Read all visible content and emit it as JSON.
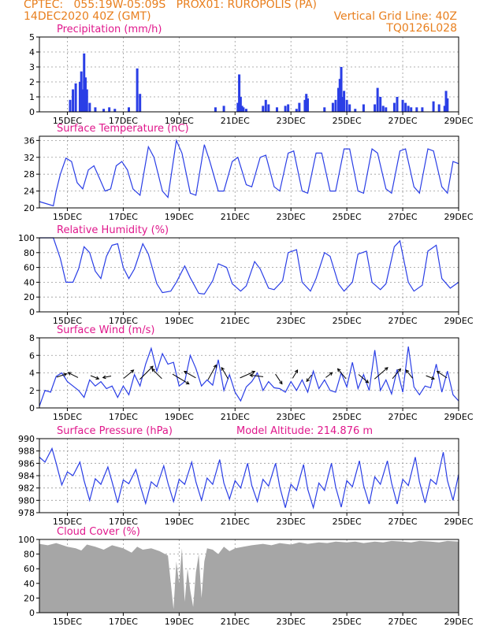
{
  "header": {
    "line1": "CPTEC:   055:19W-05:09S   PROX01: RUROPOLIS (PA)",
    "line2": "14DEC2020 40Z (GMT)",
    "right1": "Vertical Grid Line: 40Z",
    "right2": "TQ0126L028"
  },
  "colors": {
    "series": "#2a3ee6",
    "cloud": "#a6a6a6",
    "title": "#e0188c",
    "header": "#e87f1e"
  },
  "chart_data": [
    {
      "type": "bar",
      "title": "Precipitation (mm/h)",
      "ylim": [
        0,
        5
      ],
      "yticks": [
        0,
        1,
        2,
        3,
        4,
        5
      ],
      "xlim": [
        14.0,
        29.0
      ],
      "xticks": [
        15,
        17,
        19,
        21,
        23,
        25,
        27,
        29
      ],
      "xticklabels": [
        "15DEC",
        "17DEC",
        "19DEC",
        "21DEC",
        "23DEC",
        "25DEC",
        "27DEC",
        "29DEC"
      ],
      "x": [
        15.1,
        15.2,
        15.3,
        15.45,
        15.5,
        15.55,
        15.6,
        15.65,
        15.7,
        15.8,
        16.0,
        16.3,
        16.5,
        16.7,
        17.2,
        17.5,
        17.6,
        20.3,
        20.6,
        21.1,
        21.15,
        21.2,
        21.25,
        21.3,
        21.4,
        22.0,
        22.1,
        22.2,
        22.5,
        22.8,
        22.9,
        23.2,
        23.3,
        23.5,
        23.55,
        23.6,
        24.2,
        24.5,
        24.6,
        24.7,
        24.75,
        24.8,
        24.85,
        24.9,
        25.0,
        25.1,
        25.3,
        25.6,
        26.0,
        26.1,
        26.2,
        26.3,
        26.4,
        26.7,
        26.8,
        27.0,
        27.1,
        27.2,
        27.3,
        27.5,
        27.7,
        28.1,
        28.3,
        28.5,
        28.55,
        28.6
      ],
      "values": [
        0.8,
        1.5,
        1.9,
        2.0,
        2.7,
        1.5,
        3.9,
        2.3,
        1.5,
        0.6,
        0.3,
        0.2,
        0.3,
        0.2,
        0.3,
        2.9,
        1.2,
        0.3,
        0.4,
        0.6,
        2.5,
        1.0,
        0.4,
        0.3,
        0.2,
        0.4,
        0.8,
        0.5,
        0.3,
        0.4,
        0.5,
        0.2,
        0.6,
        0.8,
        1.2,
        0.9,
        0.3,
        0.6,
        0.8,
        1.6,
        2.2,
        3.0,
        1.0,
        1.4,
        0.8,
        0.5,
        0.2,
        0.5,
        0.5,
        1.6,
        1.0,
        0.4,
        0.3,
        0.6,
        1.0,
        0.8,
        0.6,
        0.4,
        0.3,
        0.3,
        0.3,
        0.7,
        0.5,
        0.4,
        1.4,
        0.9
      ]
    },
    {
      "type": "line",
      "title": "Surface Temperature (nC)",
      "ylim": [
        20,
        37
      ],
      "yticks": [
        20,
        24,
        28,
        32,
        36
      ],
      "xlim": [
        14.0,
        29.0
      ],
      "xticks": [
        15,
        17,
        19,
        21,
        23,
        25,
        27,
        29
      ],
      "xticklabels": [
        "15DEC",
        "17DEC",
        "19DEC",
        "21DEC",
        "23DEC",
        "25DEC",
        "27DEC",
        "29DEC"
      ],
      "x": [
        14.0,
        14.5,
        14.6,
        14.75,
        14.95,
        15.15,
        15.35,
        15.55,
        15.75,
        15.95,
        16.15,
        16.35,
        16.55,
        16.75,
        16.95,
        17.15,
        17.35,
        17.6,
        17.9,
        18.1,
        18.4,
        18.6,
        18.9,
        19.1,
        19.4,
        19.6,
        19.9,
        20.1,
        20.4,
        20.6,
        20.9,
        21.1,
        21.4,
        21.6,
        21.9,
        22.1,
        22.4,
        22.6,
        22.9,
        23.1,
        23.4,
        23.6,
        23.9,
        24.1,
        24.4,
        24.6,
        24.9,
        25.1,
        25.4,
        25.6,
        25.9,
        26.1,
        26.4,
        26.6,
        26.9,
        27.1,
        27.4,
        27.6,
        27.9,
        28.1,
        28.4,
        28.6,
        28.8,
        29.0
      ],
      "values": [
        21.5,
        20.5,
        24.0,
        28.0,
        31.8,
        31.0,
        26.0,
        24.5,
        29.0,
        30.0,
        27.0,
        24.0,
        24.5,
        30.0,
        31.0,
        29.0,
        24.5,
        23.0,
        34.5,
        32.0,
        24.0,
        22.5,
        36.0,
        33.0,
        23.5,
        23.0,
        35.0,
        31.0,
        24.0,
        24.0,
        31.0,
        32.0,
        25.5,
        25.0,
        32.0,
        32.5,
        25.0,
        24.0,
        33.0,
        33.5,
        24.0,
        23.5,
        33.0,
        33.0,
        24.0,
        24.0,
        34.0,
        34.0,
        24.0,
        23.5,
        34.0,
        33.0,
        24.5,
        23.5,
        33.5,
        34.0,
        25.0,
        23.5,
        34.0,
        33.5,
        25.0,
        23.5,
        31.0,
        30.5
      ]
    },
    {
      "type": "line",
      "title": "Relative Humidity (%)",
      "ylim": [
        0,
        100
      ],
      "yticks": [
        0,
        20,
        40,
        60,
        80,
        100
      ],
      "xlim": [
        14.0,
        29.0
      ],
      "xticks": [
        15,
        17,
        19,
        21,
        23,
        25,
        27,
        29
      ],
      "xticklabels": [
        "15DEC",
        "17DEC",
        "19DEC",
        "21DEC",
        "23DEC",
        "25DEC",
        "27DEC",
        "29DEC"
      ],
      "x": [
        14.0,
        14.5,
        14.75,
        14.95,
        15.2,
        15.4,
        15.6,
        15.8,
        16.0,
        16.2,
        16.4,
        16.6,
        16.8,
        17.0,
        17.2,
        17.4,
        17.7,
        17.9,
        18.2,
        18.4,
        18.7,
        18.9,
        19.2,
        19.4,
        19.7,
        19.9,
        20.2,
        20.4,
        20.7,
        20.9,
        21.2,
        21.4,
        21.7,
        21.9,
        22.2,
        22.4,
        22.7,
        22.9,
        23.2,
        23.4,
        23.7,
        23.9,
        24.2,
        24.4,
        24.7,
        24.9,
        25.2,
        25.4,
        25.7,
        25.9,
        26.2,
        26.4,
        26.7,
        26.9,
        27.2,
        27.4,
        27.7,
        27.9,
        28.2,
        28.4,
        28.7,
        29.0
      ],
      "values": [
        100,
        100,
        72,
        40,
        40,
        58,
        88,
        80,
        55,
        45,
        75,
        90,
        92,
        60,
        45,
        58,
        92,
        78,
        38,
        26,
        28,
        40,
        62,
        46,
        25,
        24,
        42,
        65,
        60,
        38,
        28,
        35,
        68,
        58,
        32,
        30,
        42,
        80,
        84,
        40,
        28,
        45,
        80,
        75,
        38,
        28,
        40,
        78,
        82,
        40,
        30,
        38,
        88,
        96,
        40,
        28,
        36,
        82,
        90,
        45,
        32,
        40
      ]
    },
    {
      "type": "line",
      "title": "Surface Wind (m/s)",
      "ylim": [
        0,
        8
      ],
      "yticks": [
        0,
        2,
        4,
        6,
        8
      ],
      "xlim": [
        14.0,
        29.0
      ],
      "xticks": [
        15,
        17,
        19,
        21,
        23,
        25,
        27,
        29
      ],
      "xticklabels": [
        "15DEC",
        "17DEC",
        "19DEC",
        "21DEC",
        "23DEC",
        "25DEC",
        "27DEC",
        "29DEC"
      ],
      "x": [
        14.0,
        14.2,
        14.4,
        14.6,
        14.8,
        15.0,
        15.2,
        15.4,
        15.6,
        15.8,
        16.0,
        16.2,
        16.4,
        16.6,
        16.8,
        17.0,
        17.2,
        17.4,
        17.6,
        17.8,
        18.0,
        18.2,
        18.4,
        18.6,
        18.8,
        19.0,
        19.2,
        19.4,
        19.6,
        19.8,
        20.0,
        20.2,
        20.4,
        20.6,
        20.8,
        21.0,
        21.2,
        21.4,
        21.6,
        21.8,
        22.0,
        22.2,
        22.4,
        22.6,
        22.8,
        23.0,
        23.2,
        23.4,
        23.6,
        23.8,
        24.0,
        24.2,
        24.4,
        24.6,
        24.8,
        25.0,
        25.2,
        25.4,
        25.6,
        25.8,
        26.0,
        26.2,
        26.4,
        26.6,
        26.8,
        27.0,
        27.2,
        27.4,
        27.6,
        27.8,
        28.0,
        28.2,
        28.4,
        28.6,
        28.8,
        29.0
      ],
      "values": [
        0.2,
        2.0,
        1.8,
        3.6,
        4.0,
        3.0,
        2.5,
        2.0,
        1.2,
        3.2,
        2.5,
        3.0,
        2.2,
        2.5,
        1.2,
        2.5,
        1.5,
        3.8,
        2.5,
        5.0,
        6.8,
        4.2,
        6.2,
        5.0,
        5.2,
        2.5,
        3.0,
        6.0,
        4.5,
        2.5,
        3.2,
        2.6,
        5.5,
        2.0,
        3.8,
        1.8,
        0.8,
        2.4,
        3.0,
        4.0,
        2.0,
        3.0,
        2.3,
        2.2,
        1.8,
        3.0,
        2.0,
        3.2,
        1.8,
        4.2,
        2.2,
        3.2,
        2.0,
        1.8,
        4.0,
        2.4,
        5.2,
        2.2,
        3.8,
        2.0,
        6.6,
        2.0,
        3.2,
        1.6,
        4.4,
        1.8,
        7.0,
        2.4,
        1.5,
        2.5,
        2.3,
        5.0,
        1.8,
        4.2,
        1.5,
        0.8
      ]
    },
    {
      "type": "line",
      "title": "Surface Pressure (hPa)",
      "annotation": "Model Altitude: 214.876 m",
      "ylim": [
        978,
        990
      ],
      "yticks": [
        978,
        980,
        982,
        984,
        986,
        988,
        990
      ],
      "xlim": [
        14.0,
        29.0
      ],
      "xticks": [
        15,
        17,
        19,
        21,
        23,
        25,
        27,
        29
      ],
      "xticklabels": [
        "15DEC",
        "17DEC",
        "19DEC",
        "21DEC",
        "23DEC",
        "25DEC",
        "27DEC",
        "29DEC"
      ],
      "x": [
        14.0,
        14.2,
        14.45,
        14.6,
        14.8,
        15.0,
        15.2,
        15.45,
        15.6,
        15.8,
        16.0,
        16.2,
        16.45,
        16.6,
        16.8,
        17.0,
        17.2,
        17.45,
        17.6,
        17.8,
        18.0,
        18.2,
        18.45,
        18.6,
        18.8,
        19.0,
        19.2,
        19.45,
        19.6,
        19.8,
        20.0,
        20.2,
        20.45,
        20.6,
        20.8,
        21.0,
        21.2,
        21.45,
        21.6,
        21.8,
        22.0,
        22.2,
        22.45,
        22.6,
        22.8,
        23.0,
        23.2,
        23.45,
        23.6,
        23.8,
        24.0,
        24.2,
        24.45,
        24.6,
        24.8,
        25.0,
        25.2,
        25.45,
        25.6,
        25.8,
        26.0,
        26.2,
        26.45,
        26.6,
        26.8,
        27.0,
        27.2,
        27.45,
        27.6,
        27.8,
        28.0,
        28.2,
        28.45,
        28.6,
        28.8,
        29.0
      ],
      "values": [
        987.0,
        986.2,
        988.4,
        986.0,
        982.5,
        984.6,
        984.0,
        986.2,
        983.2,
        980.0,
        983.5,
        982.6,
        985.4,
        983.0,
        979.6,
        983.3,
        982.7,
        985.0,
        982.5,
        979.5,
        983.0,
        982.2,
        985.6,
        982.8,
        979.8,
        983.4,
        982.6,
        986.2,
        983.0,
        980.0,
        983.6,
        982.6,
        986.6,
        982.8,
        980.2,
        983.2,
        982.0,
        986.0,
        982.4,
        979.8,
        983.4,
        982.3,
        986.0,
        982.2,
        978.8,
        982.6,
        981.6,
        985.8,
        981.8,
        978.8,
        982.8,
        981.6,
        986.0,
        982.2,
        978.9,
        983.2,
        982.2,
        986.4,
        982.4,
        979.4,
        983.8,
        982.6,
        986.4,
        982.8,
        979.4,
        983.4,
        982.4,
        987.0,
        983.0,
        979.6,
        983.4,
        982.6,
        987.8,
        983.2,
        980.0,
        984.2
      ]
    },
    {
      "type": "area",
      "title": "Cloud Cover (%)",
      "ylim": [
        0,
        100
      ],
      "yticks": [
        0,
        20,
        40,
        60,
        80,
        100
      ],
      "xlim": [
        14.0,
        29.0
      ],
      "xticks": [
        15,
        17,
        19,
        21,
        23,
        25,
        27,
        29
      ],
      "xticklabels": [
        "15DEC",
        "17DEC",
        "19DEC",
        "21DEC",
        "23DEC",
        "25DEC",
        "27DEC",
        "29DEC"
      ],
      "x": [
        14.0,
        14.3,
        14.6,
        15.0,
        15.3,
        15.5,
        15.7,
        16.0,
        16.3,
        16.6,
        17.0,
        17.3,
        17.5,
        17.7,
        18.0,
        18.3,
        18.6,
        18.8,
        18.9,
        19.0,
        19.1,
        19.2,
        19.3,
        19.4,
        19.5,
        19.6,
        19.7,
        19.8,
        19.9,
        20.0,
        20.2,
        20.4,
        20.6,
        20.8,
        21.0,
        21.3,
        21.6,
        22.0,
        22.3,
        22.6,
        23.0,
        23.3,
        23.6,
        24.0,
        24.3,
        24.6,
        25.0,
        25.3,
        25.6,
        26.0,
        26.3,
        26.6,
        27.0,
        27.3,
        27.6,
        28.0,
        28.3,
        28.6,
        29.0
      ],
      "values": [
        94,
        92,
        95,
        90,
        88,
        85,
        93,
        90,
        86,
        92,
        88,
        82,
        90,
        86,
        88,
        84,
        78,
        5,
        70,
        40,
        88,
        15,
        60,
        30,
        8,
        55,
        80,
        20,
        70,
        88,
        86,
        80,
        90,
        84,
        88,
        90,
        92,
        94,
        92,
        95,
        93,
        96,
        94,
        96,
        95,
        97,
        96,
        97,
        95,
        97,
        96,
        98,
        97,
        96,
        98,
        97,
        96,
        98,
        97
      ]
    }
  ],
  "wind_vectors": {
    "x": [
      14.7,
      15.3,
      15.9,
      16.5,
      17.1,
      17.7,
      18.3,
      18.9,
      19.5,
      20.1,
      20.7,
      21.3,
      21.9,
      22.5,
      23.1,
      23.7,
      24.3,
      24.9,
      25.5,
      26.1,
      26.7,
      27.3,
      27.9,
      28.5
    ],
    "u": [
      0.6,
      -0.6,
      0.5,
      -0.5,
      0.6,
      0.8,
      -0.6,
      1.0,
      -0.7,
      0.5,
      -0.4,
      0.9,
      -0.8,
      0.4,
      0.3,
      -0.3,
      0.4,
      -0.5,
      0.6,
      0.8,
      0.5,
      -0.4,
      0.5,
      -0.6
    ],
    "v": [
      0.2,
      0.3,
      -0.2,
      -0.1,
      0.5,
      0.8,
      0.6,
      -0.6,
      0.4,
      0.9,
      0.7,
      0.4,
      0.1,
      -0.6,
      0.5,
      -0.4,
      0.3,
      0.6,
      -0.5,
      0.7,
      0.6,
      0.5,
      -0.2,
      0.4
    ]
  }
}
